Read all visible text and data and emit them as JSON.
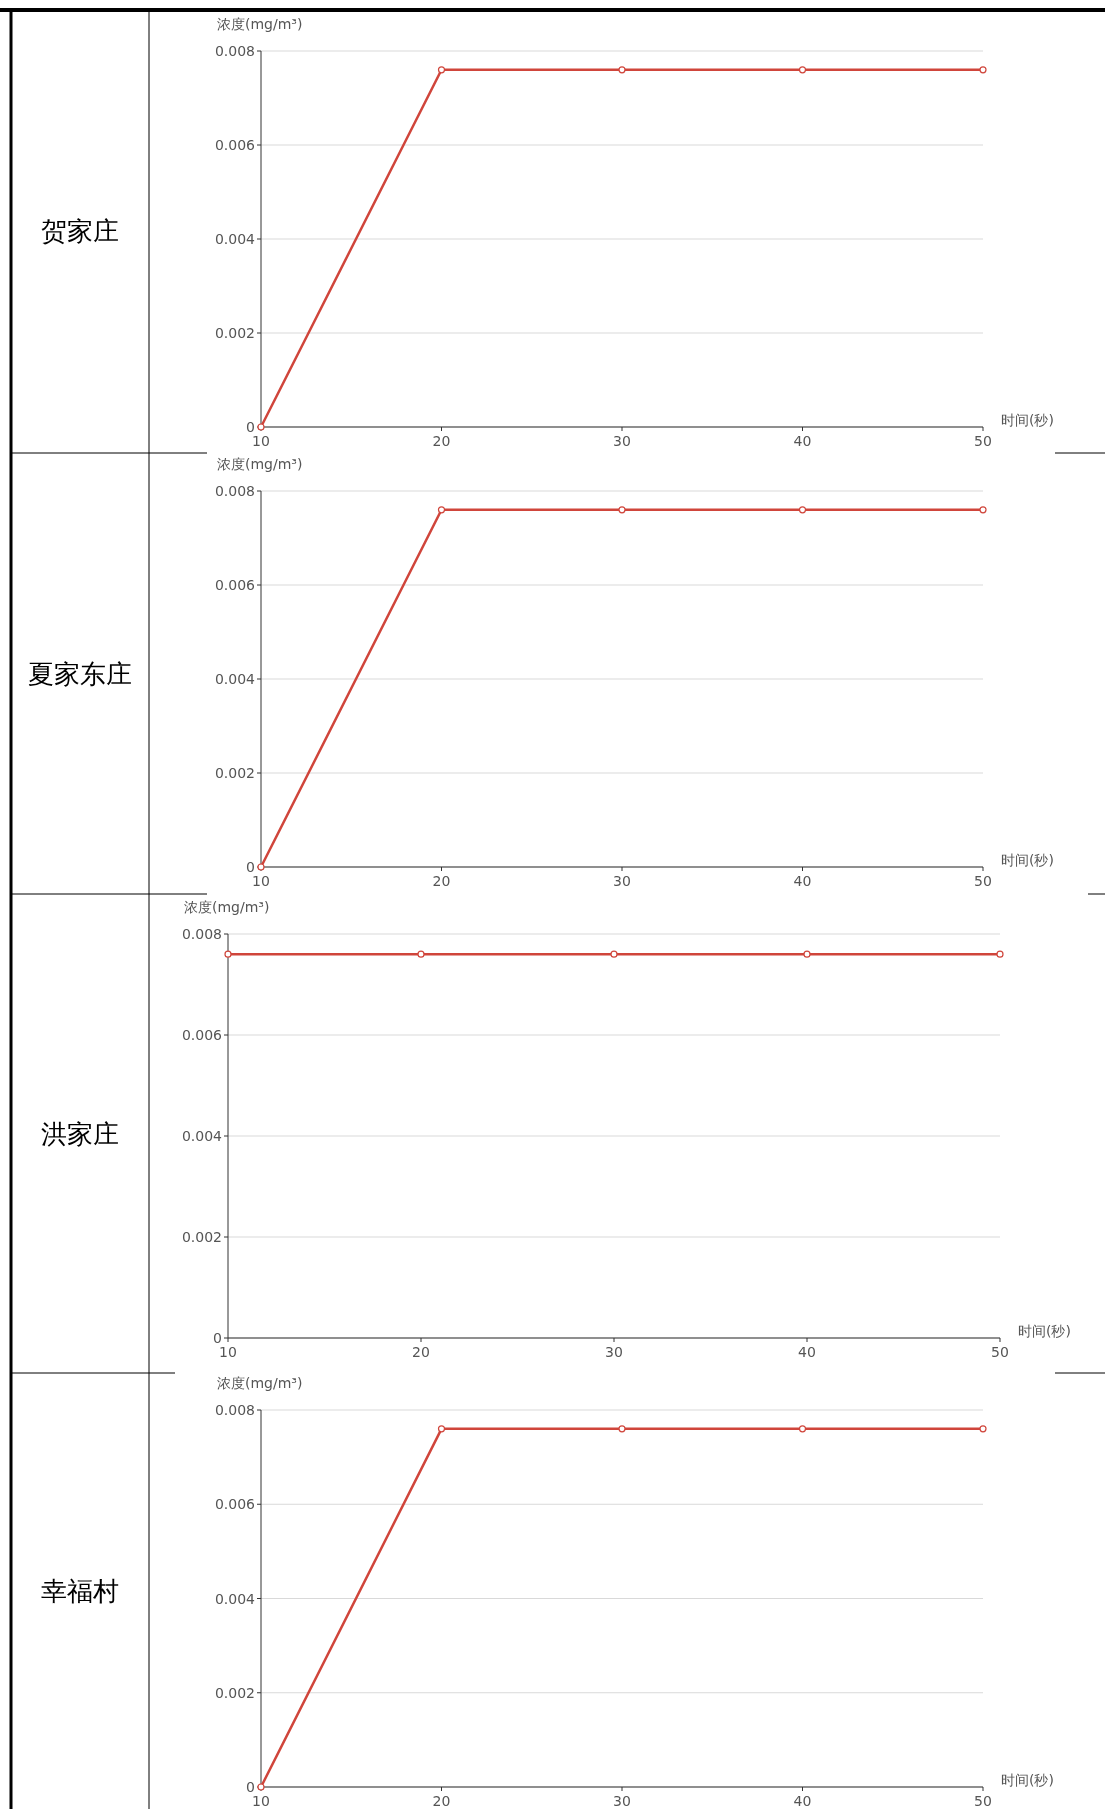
{
  "chart_data": [
    {
      "type": "line",
      "title": "贺家庄",
      "xlabel": "时间(秒)",
      "ylabel": "浓度(mg/m³)",
      "x": [
        10,
        20,
        30,
        40,
        50
      ],
      "values": [
        0,
        0.0076,
        0.0076,
        0.0076,
        0.0076
      ],
      "color": "#d0453b",
      "xlim": [
        10,
        50
      ],
      "ylim": [
        0,
        0.008
      ],
      "xticks": [
        10,
        20,
        30,
        40,
        50
      ],
      "yticks": [
        0,
        0.002,
        0.004,
        0.006,
        0.008
      ],
      "grid": "y",
      "marker": "circle"
    },
    {
      "type": "line",
      "title": "夏家东庄",
      "xlabel": "时间(秒)",
      "ylabel": "浓度(mg/m³)",
      "x": [
        10,
        20,
        30,
        40,
        50
      ],
      "values": [
        0,
        0.0076,
        0.0076,
        0.0076,
        0.0076
      ],
      "color": "#d0453b",
      "xlim": [
        10,
        50
      ],
      "ylim": [
        0,
        0.008
      ],
      "xticks": [
        10,
        20,
        30,
        40,
        50
      ],
      "yticks": [
        0,
        0.002,
        0.004,
        0.006,
        0.008
      ],
      "grid": "y",
      "marker": "circle"
    },
    {
      "type": "line",
      "title": "洪家庄",
      "xlabel": "时间(秒)",
      "ylabel": "浓度(mg/m³)",
      "x": [
        10,
        20,
        30,
        40,
        50
      ],
      "values": [
        0.0076,
        0.0076,
        0.0076,
        0.0076,
        0.0076
      ],
      "color": "#d0453b",
      "xlim": [
        10,
        50
      ],
      "ylim": [
        0,
        0.008
      ],
      "xticks": [
        10,
        20,
        30,
        40,
        50
      ],
      "yticks": [
        0,
        0.002,
        0.004,
        0.006,
        0.008
      ],
      "grid": "y",
      "marker": "circle"
    },
    {
      "type": "line",
      "title": "幸福村",
      "xlabel": "时间(秒)",
      "ylabel": "浓度(mg/m³)",
      "x": [
        10,
        20,
        30,
        40,
        50
      ],
      "values": [
        0,
        0.0076,
        0.0076,
        0.0076,
        0.0076
      ],
      "color": "#d0453b",
      "xlim": [
        10,
        50
      ],
      "ylim": [
        0,
        0.008
      ],
      "xticks": [
        10,
        20,
        30,
        40,
        50
      ],
      "yticks": [
        0,
        0.002,
        0.004,
        0.006,
        0.008
      ],
      "grid": "y",
      "marker": "circle"
    }
  ]
}
